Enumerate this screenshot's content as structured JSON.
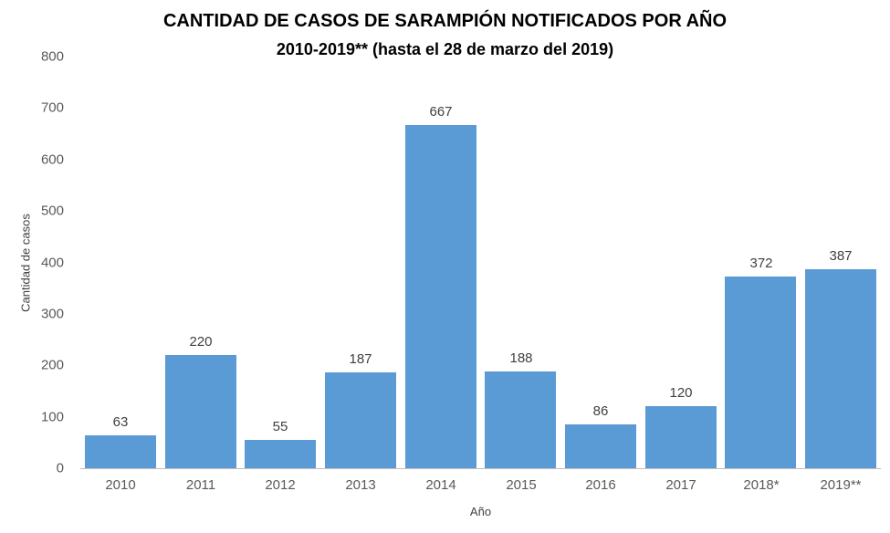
{
  "chart_data": {
    "type": "bar",
    "title": "CANTIDAD DE CASOS DE SARAMPIÓN NOTIFICADOS POR AÑO",
    "subtitle": "2010-2019** (hasta el 28 de marzo del 2019)",
    "categories": [
      "2010",
      "2011",
      "2012",
      "2013",
      "2014",
      "2015",
      "2016",
      "2017",
      "2018*",
      "2019**"
    ],
    "values": [
      63,
      220,
      55,
      187,
      667,
      188,
      86,
      120,
      372,
      387
    ],
    "xlabel": "Año",
    "ylabel": "Cantidad de casos",
    "ylim": [
      0,
      800
    ],
    "y_ticks": [
      0,
      100,
      200,
      300,
      400,
      500,
      600,
      700,
      800
    ],
    "bar_color": "#5b9bd5",
    "value_label_color": "#404040",
    "tick_label_color": "#595959",
    "grid": false,
    "legend": "none"
  }
}
